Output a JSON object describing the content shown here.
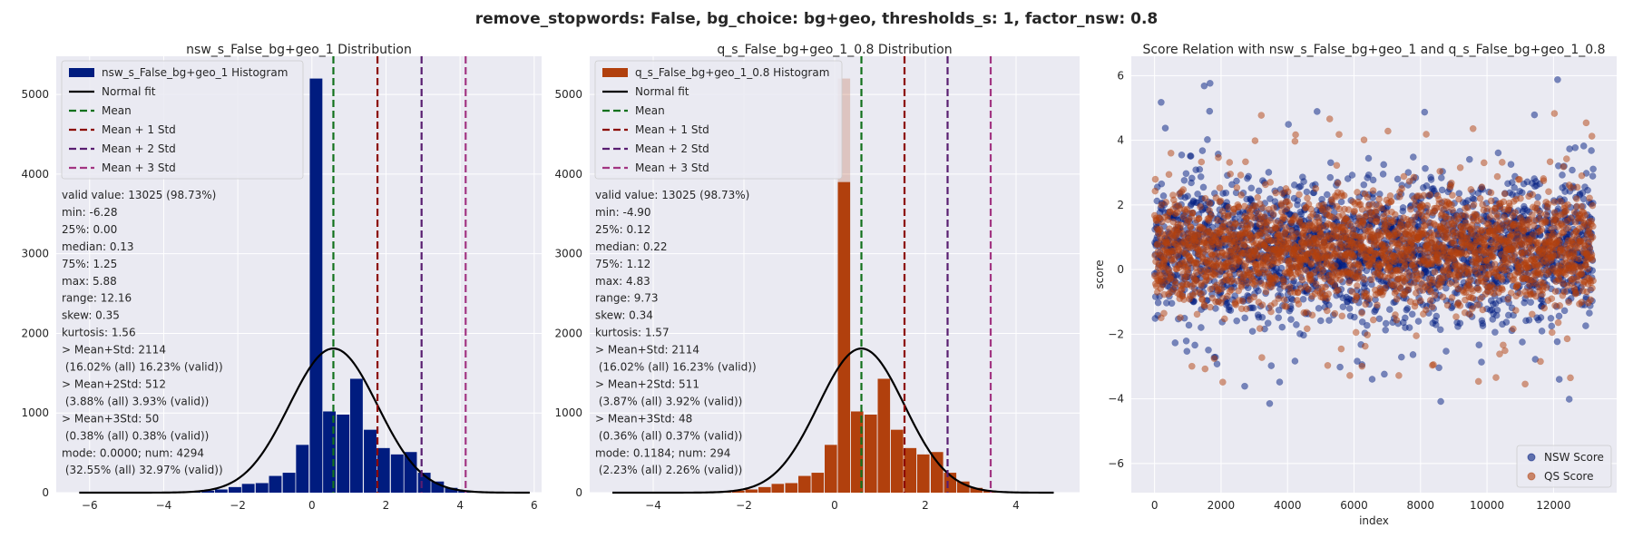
{
  "suptitle": "remove_stopwords: False, bg_choice: bg+geo, thresholds_s: 1, factor_nsw: 0.8",
  "colors": {
    "background": "#ffffff",
    "axes_bg": "#eaeaf2",
    "grid": "#ffffff",
    "nsw": "#001c7f",
    "qs": "#b1400d",
    "normal_fit": "#000000",
    "mean": "#12711c",
    "std1": "#8c0800",
    "std2": "#591e71",
    "std3": "#a23582"
  },
  "chart_data": [
    {
      "type": "bar",
      "title": "nsw_s_False_bg+geo_1 Distribution",
      "xlim": [
        -6.9,
        6.2
      ],
      "ylim": [
        0,
        5480
      ],
      "xticks": [
        -6,
        -4,
        -2,
        0,
        2,
        4,
        6
      ],
      "xtick_labels": [
        "−6",
        "−4",
        "−2",
        "0",
        "2",
        "4",
        "6"
      ],
      "yticks": [
        0,
        1000,
        2000,
        3000,
        4000,
        5000
      ],
      "ytick_labels": [
        "0",
        "1000",
        "2000",
        "3000",
        "4000",
        "5000"
      ],
      "legend": [
        "nsw_s_False_bg+geo_1 Histogram",
        "Normal fit",
        "Mean",
        "Mean + 1 Std",
        "Mean + 2 Std",
        "Mean + 3 Std"
      ],
      "legend_position": "upper-left",
      "bin_width": 0.365,
      "bins": [
        [
          -6.28,
          2
        ],
        [
          -5.91,
          2
        ],
        [
          -5.55,
          3
        ],
        [
          -5.18,
          4
        ],
        [
          -4.82,
          5
        ],
        [
          -4.45,
          6
        ],
        [
          -4.09,
          8
        ],
        [
          -3.72,
          10
        ],
        [
          -3.36,
          15
        ],
        [
          -2.99,
          25
        ],
        [
          -2.63,
          40
        ],
        [
          -2.26,
          70
        ],
        [
          -1.9,
          110
        ],
        [
          -1.53,
          120
        ],
        [
          -1.17,
          210
        ],
        [
          -0.8,
          250
        ],
        [
          -0.44,
          600
        ],
        [
          -0.07,
          5200
        ],
        [
          0.29,
          1020
        ],
        [
          0.66,
          980
        ],
        [
          1.02,
          1430
        ],
        [
          1.39,
          790
        ],
        [
          1.75,
          560
        ],
        [
          2.12,
          480
        ],
        [
          2.48,
          510
        ],
        [
          2.85,
          250
        ],
        [
          3.21,
          140
        ],
        [
          3.58,
          60
        ],
        [
          3.94,
          25
        ],
        [
          4.31,
          10
        ],
        [
          4.67,
          5
        ],
        [
          5.04,
          3
        ],
        [
          5.4,
          2
        ]
      ],
      "normal_fit": {
        "mean": 0.58,
        "std": 1.19,
        "peak": 1810,
        "range": [
          -6.28,
          5.88
        ]
      },
      "vlines": [
        {
          "label": "Mean",
          "x": 0.58
        },
        {
          "label": "Mean + 1 Std",
          "x": 1.77
        },
        {
          "label": "Mean + 2 Std",
          "x": 2.96
        },
        {
          "label": "Mean + 3 Std",
          "x": 4.15
        }
      ],
      "stats": [
        "valid value: 13025 (98.73%)",
        "min: -6.28",
        "25%: 0.00",
        "median: 0.13",
        "75%: 1.25",
        "max: 5.88",
        "range: 12.16",
        "skew: 0.35",
        "kurtosis: 1.56",
        "> Mean+Std: 2114",
        " (16.02% (all) 16.23% (valid))",
        "> Mean+2Std: 512",
        " (3.88% (all) 3.93% (valid))",
        "> Mean+3Std: 50",
        " (0.38% (all) 0.38% (valid))",
        "mode: 0.0000; num: 4294",
        " (32.55% (all) 32.97% (valid))"
      ]
    },
    {
      "type": "bar",
      "title": "q_s_False_bg+geo_1_0.8 Distribution",
      "xlim": [
        -5.4,
        5.4
      ],
      "ylim": [
        0,
        5480
      ],
      "xticks": [
        -4,
        -2,
        0,
        2,
        4
      ],
      "xtick_labels": [
        "−4",
        "−2",
        "0",
        "2",
        "4"
      ],
      "yticks": [
        0,
        1000,
        2000,
        3000,
        4000,
        5000
      ],
      "ytick_labels": [
        "0",
        "1000",
        "2000",
        "3000",
        "4000",
        "5000"
      ],
      "legend": [
        "q_s_False_bg+geo_1_0.8 Histogram",
        "Normal fit",
        "Mean",
        "Mean + 1 Std",
        "Mean + 2 Std",
        "Mean + 3 Std"
      ],
      "legend_position": "upper-left",
      "bin_width": 0.292,
      "bins": [
        [
          -4.9,
          2
        ],
        [
          -4.61,
          2
        ],
        [
          -4.32,
          3
        ],
        [
          -4.02,
          4
        ],
        [
          -3.73,
          5
        ],
        [
          -3.44,
          6
        ],
        [
          -3.15,
          8
        ],
        [
          -2.86,
          10
        ],
        [
          -2.56,
          15
        ],
        [
          -2.27,
          25
        ],
        [
          -1.98,
          40
        ],
        [
          -1.69,
          70
        ],
        [
          -1.4,
          110
        ],
        [
          -1.1,
          120
        ],
        [
          -0.81,
          210
        ],
        [
          -0.52,
          250
        ],
        [
          -0.23,
          600
        ],
        [
          0.06,
          5200
        ],
        [
          0.35,
          1020
        ],
        [
          0.65,
          980
        ],
        [
          0.94,
          1430
        ],
        [
          1.23,
          790
        ],
        [
          1.52,
          560
        ],
        [
          1.81,
          480
        ],
        [
          2.11,
          510
        ],
        [
          2.4,
          250
        ],
        [
          2.69,
          140
        ],
        [
          2.98,
          60
        ],
        [
          3.27,
          25
        ],
        [
          3.57,
          10
        ],
        [
          3.86,
          5
        ],
        [
          4.15,
          3
        ],
        [
          4.44,
          2
        ]
      ],
      "highlight": {
        "bin_index": 17,
        "dark_value": 3900
      },
      "normal_fit": {
        "mean": 0.59,
        "std": 0.95,
        "peak": 1810,
        "range": [
          -4.9,
          4.83
        ]
      },
      "vlines": [
        {
          "label": "Mean",
          "x": 0.59
        },
        {
          "label": "Mean + 1 Std",
          "x": 1.54
        },
        {
          "label": "Mean + 2 Std",
          "x": 2.49
        },
        {
          "label": "Mean + 3 Std",
          "x": 3.44
        }
      ],
      "stats": [
        "valid value: 13025 (98.73%)",
        "min: -4.90",
        "25%: 0.12",
        "median: 0.22",
        "75%: 1.12",
        "max: 4.83",
        "range: 9.73",
        "skew: 0.34",
        "kurtosis: 1.57",
        "> Mean+Std: 2114",
        " (16.02% (all) 16.23% (valid))",
        "> Mean+2Std: 511",
        " (3.87% (all) 3.92% (valid))",
        "> Mean+3Std: 48",
        " (0.36% (all) 0.37% (valid))",
        "mode: 0.1184; num: 294",
        " (2.23% (all) 2.26% (valid))"
      ]
    },
    {
      "type": "scatter",
      "title": "Score Relation with nsw_s_False_bg+geo_1 and q_s_False_bg+geo_1_0.8",
      "xlabel": "index",
      "ylabel": "score",
      "xlim": [
        -700,
        13900
      ],
      "ylim": [
        -6.9,
        6.6
      ],
      "xticks": [
        0,
        2000,
        4000,
        6000,
        8000,
        10000,
        12000
      ],
      "xtick_labels": [
        "0",
        "2000",
        "4000",
        "6000",
        "8000",
        "10000",
        "12000"
      ],
      "yticks": [
        -6,
        -4,
        -2,
        0,
        2,
        4,
        6
      ],
      "ytick_labels": [
        "−6",
        "−4",
        "−2",
        "0",
        "2",
        "4",
        "6"
      ],
      "legend_position": "lower-right",
      "n_points": 13193,
      "series": [
        {
          "name": "NSW Score",
          "mean": 0.58,
          "std": 1.19,
          "min": -6.28,
          "max": 5.88
        },
        {
          "name": "QS Score",
          "mean": 0.59,
          "std": 0.95,
          "min": -4.9,
          "max": 4.83
        }
      ]
    }
  ]
}
